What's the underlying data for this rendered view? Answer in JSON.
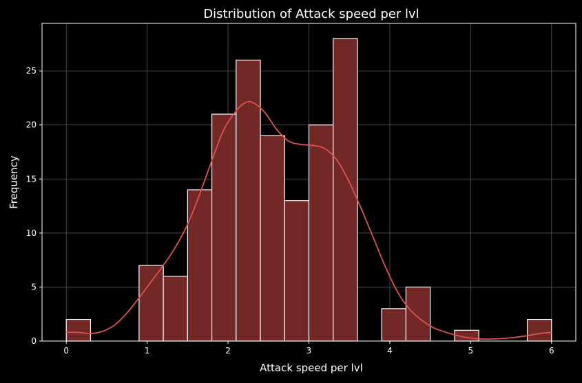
{
  "chart_data": {
    "type": "bar",
    "title": "Distribution of Attack speed per lvl",
    "xlabel": "Attack speed per lvl",
    "ylabel": "Frequency",
    "xlim": [
      -0.3,
      6.3
    ],
    "ylim": [
      0,
      29.4
    ],
    "xticks": [
      0,
      1,
      2,
      3,
      4,
      5,
      6
    ],
    "yticks": [
      0,
      5,
      10,
      15,
      20,
      25
    ],
    "grid": true,
    "bins": [
      {
        "x0": 0.0,
        "x1": 0.3,
        "count": 2
      },
      {
        "x0": 0.3,
        "x1": 0.6,
        "count": 0
      },
      {
        "x0": 0.6,
        "x1": 0.9,
        "count": 0
      },
      {
        "x0": 0.9,
        "x1": 1.2,
        "count": 7
      },
      {
        "x0": 1.2,
        "x1": 1.5,
        "count": 6
      },
      {
        "x0": 1.5,
        "x1": 1.8,
        "count": 14
      },
      {
        "x0": 1.8,
        "x1": 2.1,
        "count": 21
      },
      {
        "x0": 2.1,
        "x1": 2.4,
        "count": 26
      },
      {
        "x0": 2.4,
        "x1": 2.7,
        "count": 19
      },
      {
        "x0": 2.7,
        "x1": 3.0,
        "count": 13
      },
      {
        "x0": 3.0,
        "x1": 3.3,
        "count": 20
      },
      {
        "x0": 3.3,
        "x1": 3.6,
        "count": 28
      },
      {
        "x0": 3.6,
        "x1": 3.9,
        "count": 0
      },
      {
        "x0": 3.9,
        "x1": 4.2,
        "count": 3
      },
      {
        "x0": 4.2,
        "x1": 4.5,
        "count": 5
      },
      {
        "x0": 4.5,
        "x1": 4.8,
        "count": 0
      },
      {
        "x0": 4.8,
        "x1": 5.1,
        "count": 1
      },
      {
        "x0": 5.1,
        "x1": 5.4,
        "count": 0
      },
      {
        "x0": 5.4,
        "x1": 5.7,
        "count": 0
      },
      {
        "x0": 5.7,
        "x1": 6.0,
        "count": 2
      }
    ],
    "kde": [
      [
        0.0,
        0.8
      ],
      [
        0.15,
        0.8
      ],
      [
        0.3,
        0.7
      ],
      [
        0.45,
        0.9
      ],
      [
        0.6,
        1.5
      ],
      [
        0.75,
        2.6
      ],
      [
        0.9,
        4.0
      ],
      [
        1.05,
        5.5
      ],
      [
        1.2,
        7.0
      ],
      [
        1.35,
        8.7
      ],
      [
        1.5,
        10.8
      ],
      [
        1.65,
        13.6
      ],
      [
        1.8,
        16.7
      ],
      [
        1.95,
        19.6
      ],
      [
        2.1,
        21.3
      ],
      [
        2.2,
        22.0
      ],
      [
        2.3,
        22.1
      ],
      [
        2.45,
        21.2
      ],
      [
        2.6,
        19.6
      ],
      [
        2.75,
        18.5
      ],
      [
        2.9,
        18.2
      ],
      [
        3.05,
        18.1
      ],
      [
        3.2,
        17.8
      ],
      [
        3.35,
        16.7
      ],
      [
        3.5,
        14.7
      ],
      [
        3.65,
        12.2
      ],
      [
        3.8,
        9.5
      ],
      [
        3.95,
        6.8
      ],
      [
        4.1,
        4.5
      ],
      [
        4.25,
        2.9
      ],
      [
        4.4,
        1.9
      ],
      [
        4.55,
        1.2
      ],
      [
        4.7,
        0.8
      ],
      [
        4.9,
        0.4
      ],
      [
        5.1,
        0.2
      ],
      [
        5.3,
        0.2
      ],
      [
        5.5,
        0.3
      ],
      [
        5.7,
        0.5
      ],
      [
        5.85,
        0.7
      ],
      [
        6.0,
        0.8
      ]
    ],
    "colors": {
      "background": "#000000",
      "bar_fill": "#722826",
      "bar_edge": "#ffffff",
      "kde_line": "#e05252",
      "axis": "#ffffff",
      "grid": "#5a5a5a",
      "text": "#ffffff"
    }
  }
}
